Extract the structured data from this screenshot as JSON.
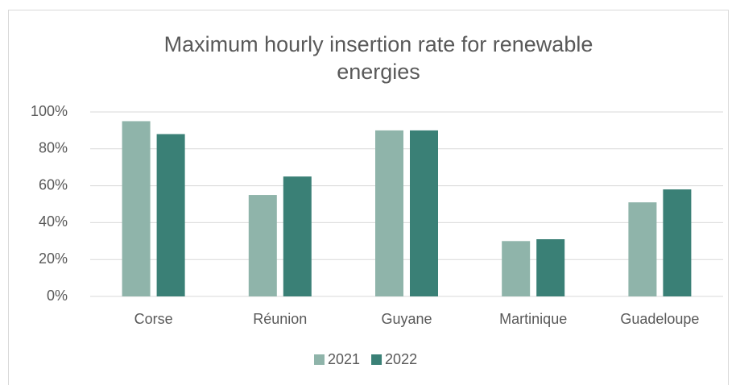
{
  "chart_data": {
    "type": "bar",
    "title": "Maximum hourly insertion rate for renewable energies",
    "categories": [
      "Corse",
      "Réunion",
      "Guyane",
      "Martinique",
      "Guadeloupe"
    ],
    "series": [
      {
        "name": "2021",
        "color": "#8fb4aa",
        "values": [
          95,
          55,
          90,
          30,
          51
        ]
      },
      {
        "name": "2022",
        "color": "#3a8076",
        "values": [
          88,
          65,
          90,
          31,
          58
        ]
      }
    ],
    "ylim": [
      0,
      100
    ],
    "yticks": [
      {
        "value": 0,
        "label": "0%"
      },
      {
        "value": 20,
        "label": "20%"
      },
      {
        "value": 40,
        "label": "40%"
      },
      {
        "value": 60,
        "label": "60%"
      },
      {
        "value": 80,
        "label": "80%"
      },
      {
        "value": 100,
        "label": "100%"
      }
    ],
    "grid": true,
    "legend": "bottom"
  }
}
